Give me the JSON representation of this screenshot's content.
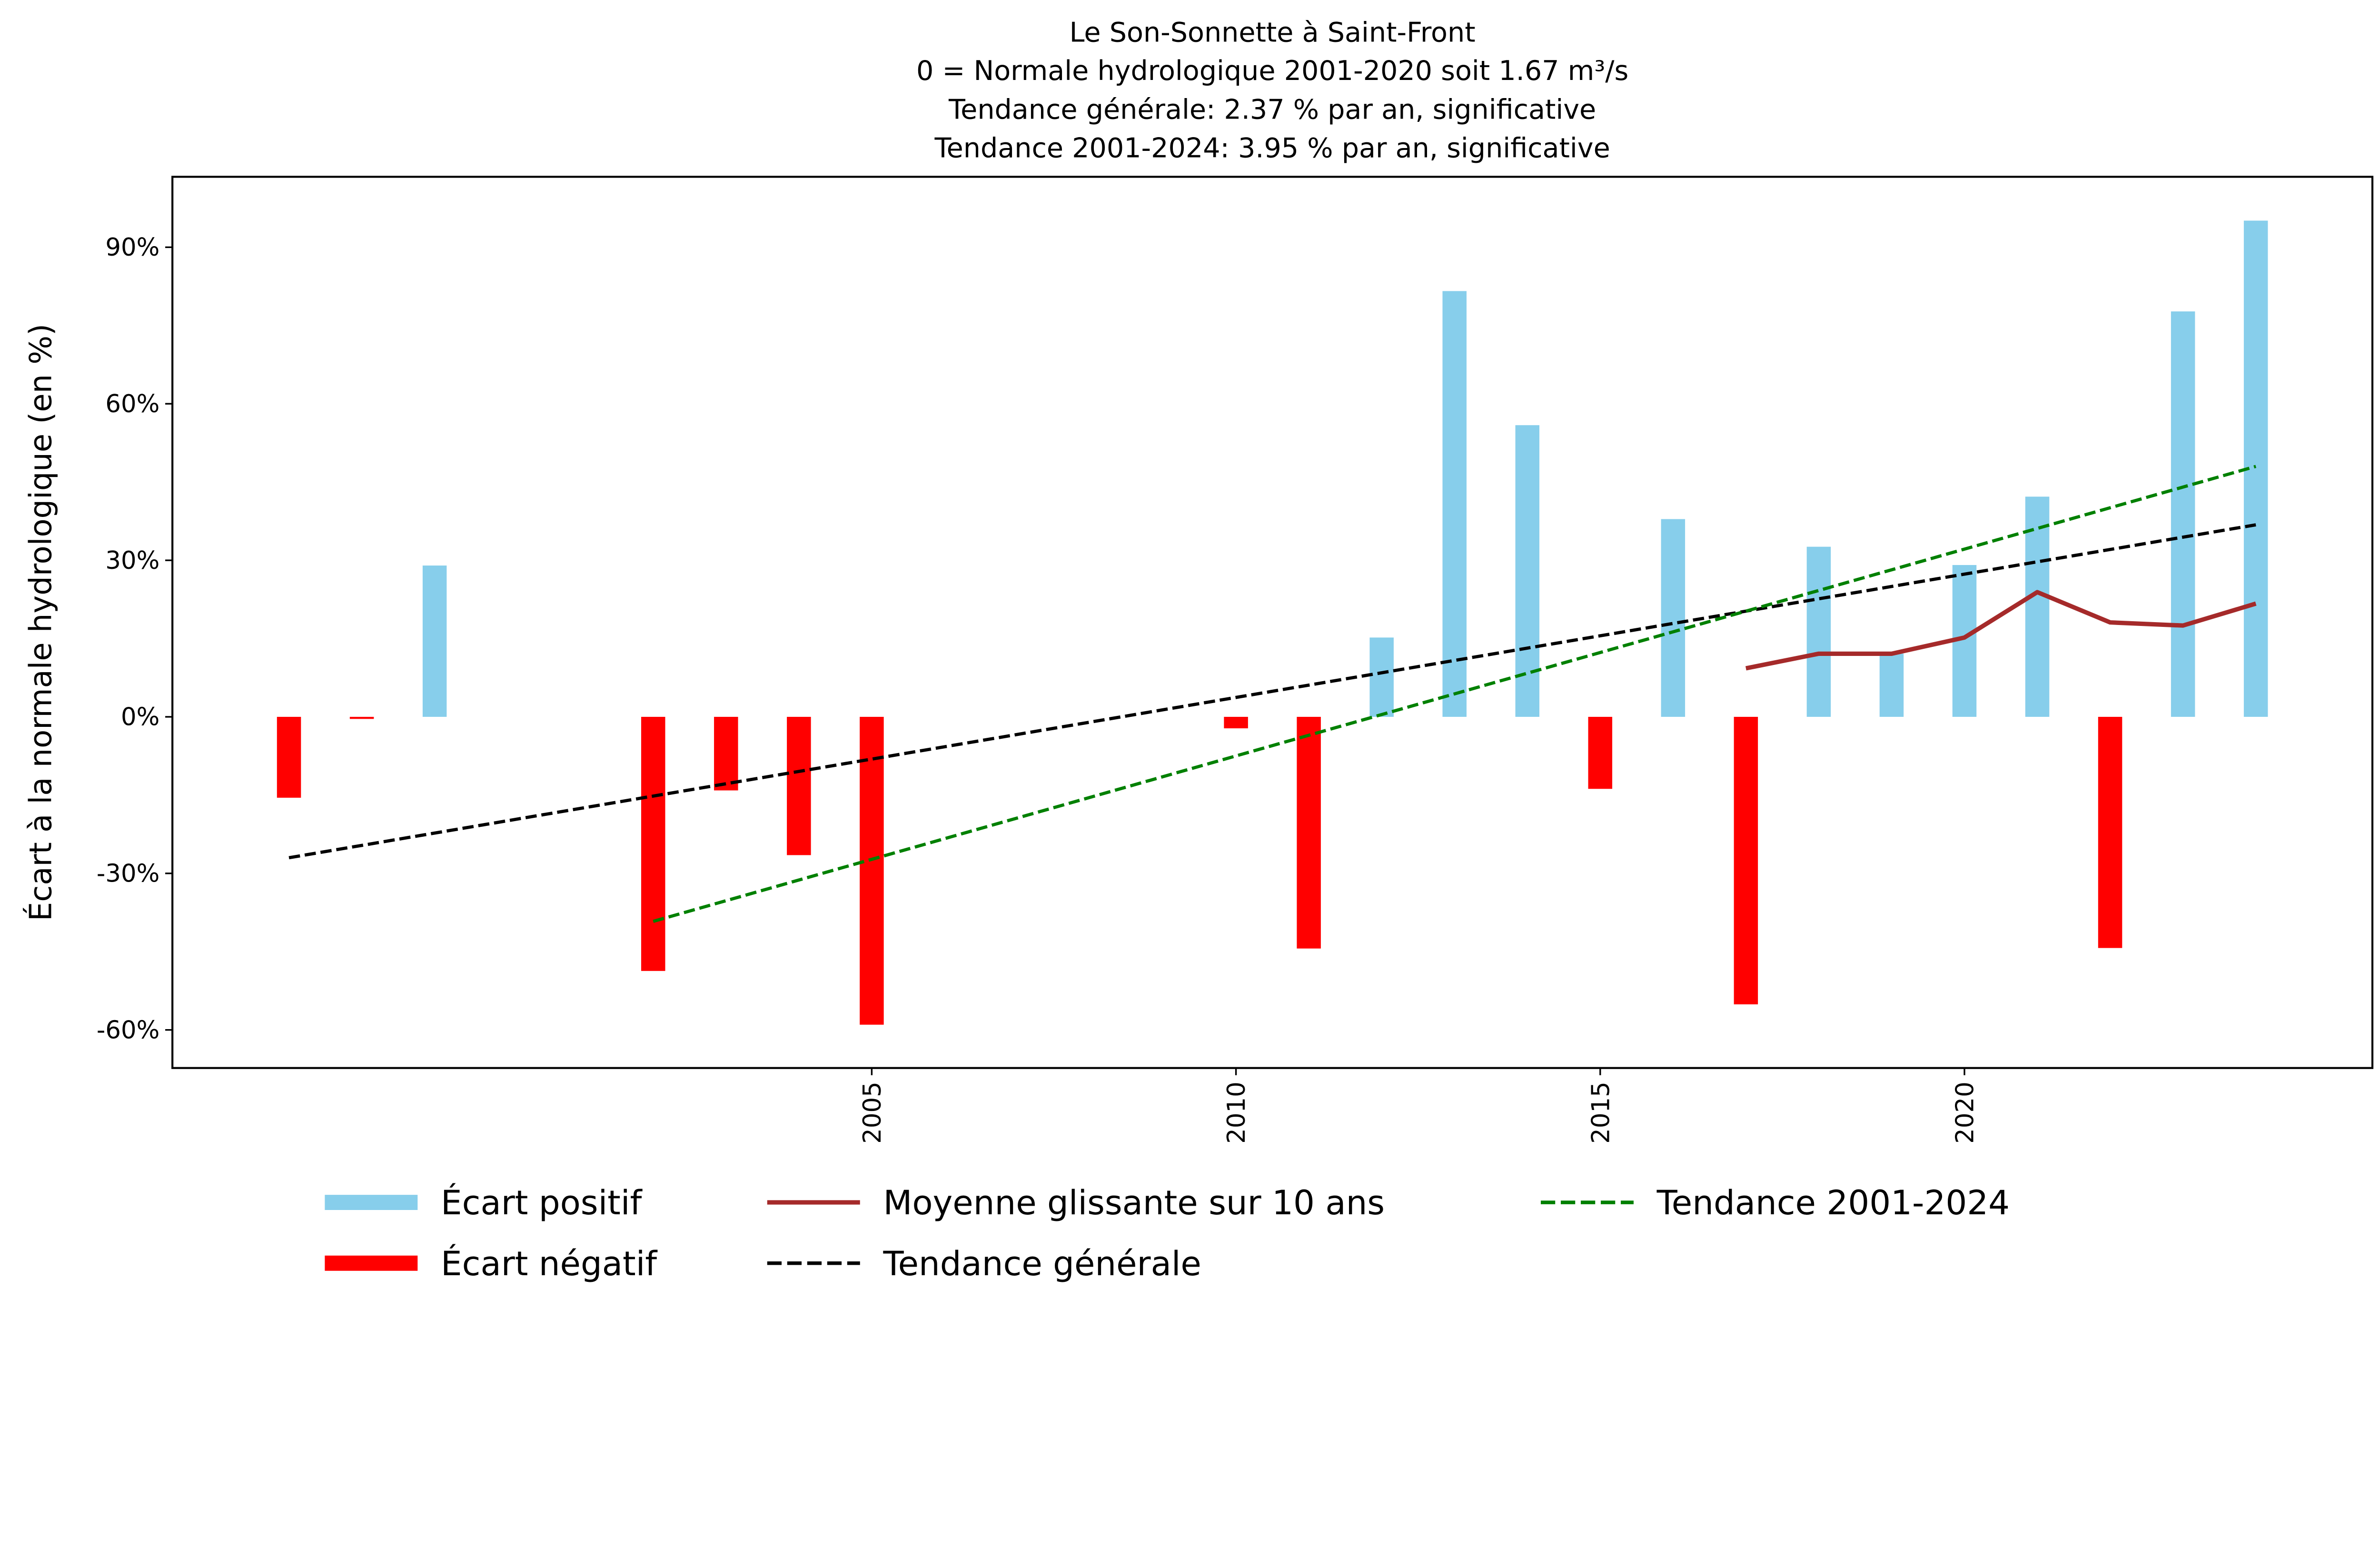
{
  "chart_data": {
    "type": "bar",
    "title_lines": [
      "Le Son-Sonnette à Saint-Front",
      "0 = Normale hydrologique 2001-2020 soit 1.67 m³/s",
      "Tendance générale: 2.37 % par an, significative",
      "Tendance 2001-2024: 3.95 % par an, significative"
    ],
    "xlabel": "",
    "ylabel": "Écart à la normale hydrologique (en %)",
    "xlim": [
      1995.4,
      2025.6
    ],
    "ylim": [
      -67.3,
      103.5
    ],
    "x_ticks": [
      2005,
      2010,
      2015,
      2020
    ],
    "x_tick_labels": [
      "2005",
      "2010",
      "2015",
      "2020"
    ],
    "y_ticks": [
      -60,
      -30,
      0,
      30,
      60,
      90
    ],
    "y_tick_labels": [
      "-60%",
      "-30%",
      "0%",
      "30%",
      "60%",
      "90%"
    ],
    "grid": false,
    "legend_position": "bottom-center",
    "colors": {
      "positive": "#87CEEB",
      "negative": "#FF0000",
      "moving_avg": "#A52A2A",
      "trend_general": "#000000",
      "trend_recent": "#008000"
    },
    "bars": {
      "years": [
        1997,
        1998,
        1999,
        2002,
        2003,
        2004,
        2005,
        2010,
        2011,
        2012,
        2013,
        2014,
        2015,
        2016,
        2017,
        2018,
        2019,
        2020,
        2021,
        2022,
        2023,
        2024
      ],
      "values": [
        -15.5,
        -0.4,
        29.0,
        -48.7,
        -14.1,
        -26.5,
        -59.0,
        -2.2,
        -44.4,
        15.2,
        81.6,
        55.9,
        -13.8,
        37.9,
        -55.1,
        32.6,
        12.1,
        29.1,
        42.2,
        -44.3,
        77.7,
        95.1
      ]
    },
    "series": [
      {
        "name": "Moyenne glissante sur 10 ans",
        "style": "solid",
        "x": [
          2017,
          2018,
          2019,
          2020,
          2021,
          2022,
          2023,
          2024
        ],
        "y": [
          9.3,
          12.1,
          12.1,
          15.2,
          23.9,
          18.1,
          17.5,
          21.7
        ]
      },
      {
        "name": "Tendance générale",
        "style": "dashed",
        "x": [
          1997,
          2024
        ],
        "y": [
          -27.0,
          36.8
        ]
      },
      {
        "name": "Tendance 2001-2024",
        "style": "dashed",
        "x": [
          2002,
          2024
        ],
        "y": [
          -39.2,
          48.0
        ]
      }
    ],
    "legend": [
      {
        "label": "Écart positif",
        "color": "#87CEEB",
        "kind": "bar"
      },
      {
        "label": "Écart négatif",
        "color": "#FF0000",
        "kind": "bar"
      },
      {
        "label": "Moyenne glissante sur 10 ans",
        "color": "#A52A2A",
        "kind": "solid"
      },
      {
        "label": "Tendance générale",
        "color": "#000000",
        "kind": "dashed"
      },
      {
        "label": "Tendance 2001-2024",
        "color": "#008000",
        "kind": "dashed"
      }
    ]
  }
}
